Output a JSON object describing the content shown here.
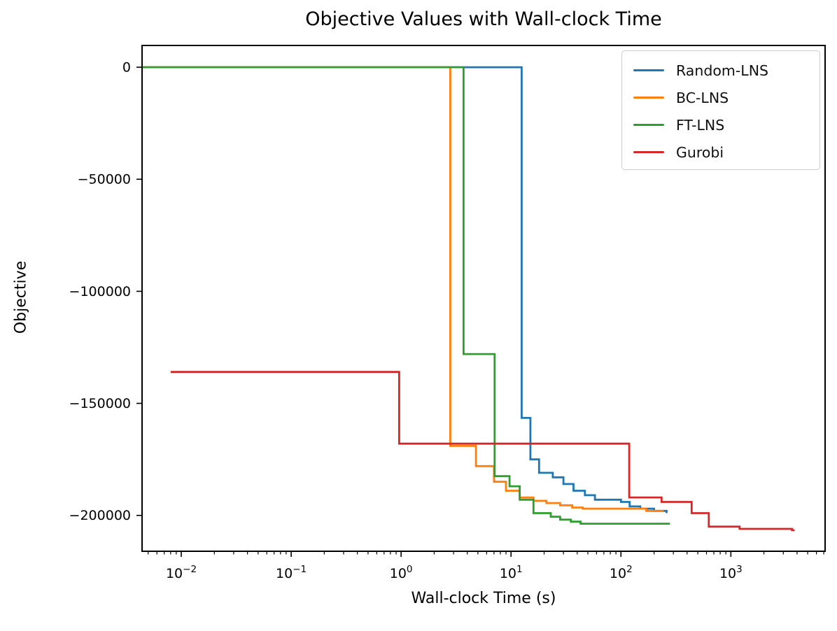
{
  "chart_data": {
    "type": "line",
    "title": "Objective Values with Wall-clock Time",
    "xlabel": "Wall-clock Time (s)",
    "ylabel": "Objective",
    "x_scale": "log",
    "grid": false,
    "legend_position": "upper right",
    "xlim": [
      0.0044,
      7200
    ],
    "ylim": [
      -216000,
      9700
    ],
    "x_ticks": [
      {
        "value": 0.01,
        "exponent": -2,
        "label": "10^-2"
      },
      {
        "value": 0.1,
        "exponent": -1,
        "label": "10^-1"
      },
      {
        "value": 1,
        "exponent": 0,
        "label": "10^0"
      },
      {
        "value": 10,
        "exponent": 1,
        "label": "10^1"
      },
      {
        "value": 100,
        "exponent": 2,
        "label": "10^2"
      },
      {
        "value": 1000,
        "exponent": 3,
        "label": "10^3"
      }
    ],
    "y_ticks": [
      {
        "value": 0,
        "label": "0"
      },
      {
        "value": -50000,
        "label": "−50000"
      },
      {
        "value": -100000,
        "label": "−100000"
      },
      {
        "value": -150000,
        "label": "−150000"
      },
      {
        "value": -200000,
        "label": "−200000"
      }
    ],
    "series": [
      {
        "name": "Random-LNS",
        "color": "#1f77b4",
        "step": "post",
        "points": [
          [
            0.0044,
            0
          ],
          [
            12.5,
            -156500
          ],
          [
            15,
            -175000
          ],
          [
            18,
            -181000
          ],
          [
            24,
            -183000
          ],
          [
            30,
            -186000
          ],
          [
            37,
            -189000
          ],
          [
            47,
            -191000
          ],
          [
            58,
            -193000
          ],
          [
            100,
            -194000
          ],
          [
            120,
            -196000
          ],
          [
            150,
            -197000
          ],
          [
            200,
            -198000
          ],
          [
            260,
            -199000
          ]
        ]
      },
      {
        "name": "BC-LNS",
        "color": "#ff7f0e",
        "step": "post",
        "points": [
          [
            0.0044,
            0
          ],
          [
            2.8,
            -169000
          ],
          [
            4.8,
            -178000
          ],
          [
            7,
            -185000
          ],
          [
            9,
            -189000
          ],
          [
            12,
            -192000
          ],
          [
            16,
            -193500
          ],
          [
            21,
            -194500
          ],
          [
            28,
            -195500
          ],
          [
            36,
            -196500
          ],
          [
            45,
            -197000
          ],
          [
            170,
            -198000
          ],
          [
            245,
            -198000
          ]
        ]
      },
      {
        "name": "FT-LNS",
        "color": "#2ca02c",
        "step": "post",
        "points": [
          [
            0.0044,
            0
          ],
          [
            3.7,
            -128000
          ],
          [
            7.1,
            -182500
          ],
          [
            9.7,
            -187000
          ],
          [
            12,
            -193000
          ],
          [
            16,
            -199000
          ],
          [
            23,
            -200600
          ],
          [
            28,
            -201900
          ],
          [
            35,
            -202800
          ],
          [
            43,
            -203700
          ],
          [
            279,
            -203700
          ]
        ]
      },
      {
        "name": "Gurobi",
        "color": "#d62728",
        "step": "post",
        "points": [
          [
            0.008,
            -136000
          ],
          [
            0.96,
            -168000
          ],
          [
            119,
            -192000
          ],
          [
            234,
            -194000
          ],
          [
            440,
            -199000
          ],
          [
            630,
            -205000
          ],
          [
            1200,
            -206000
          ],
          [
            3600,
            -206600
          ],
          [
            3800,
            -206600
          ]
        ]
      }
    ]
  }
}
